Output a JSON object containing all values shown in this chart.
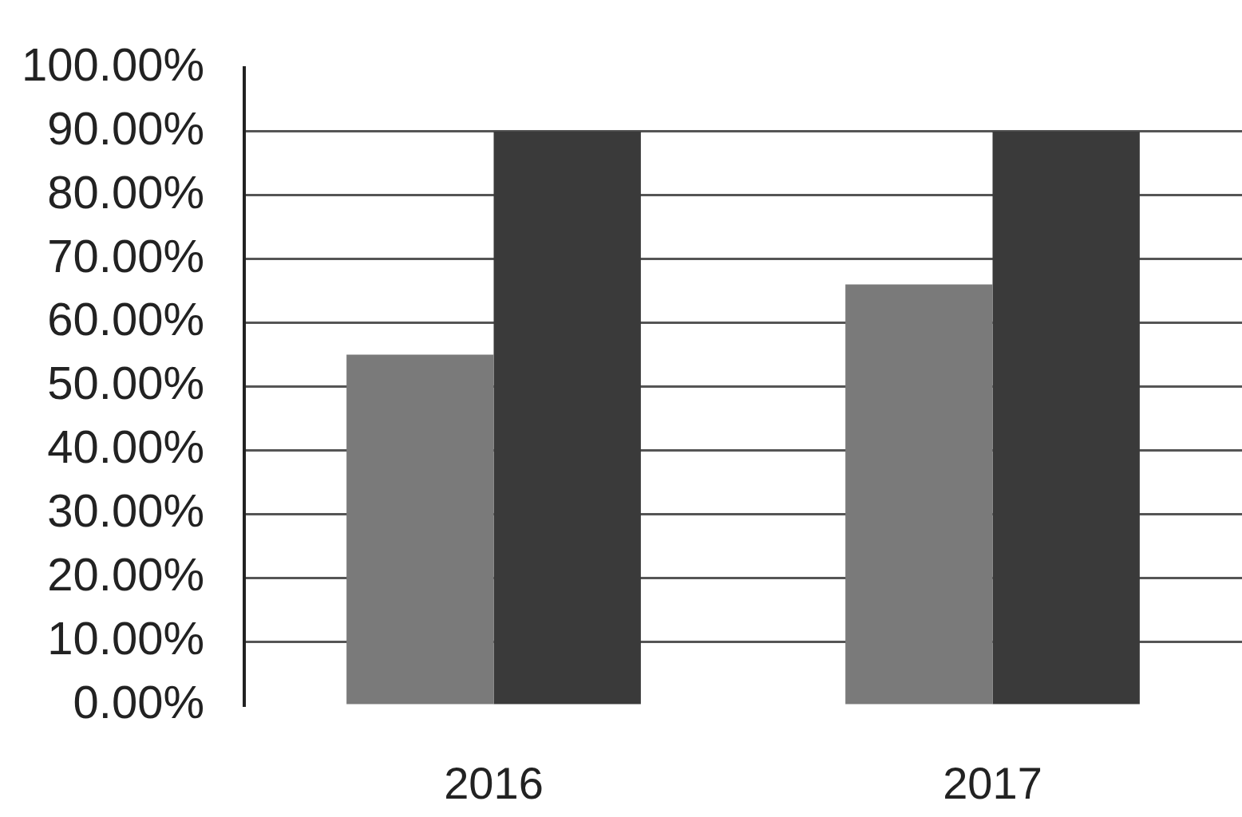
{
  "chart_data": {
    "type": "bar",
    "categories": [
      "2016",
      "2017"
    ],
    "series": [
      {
        "color": "#7a7a7a",
        "values": [
          55,
          66
        ]
      },
      {
        "color": "#3a3a3a",
        "values": [
          90,
          90
        ]
      }
    ],
    "ylim": [
      0,
      100
    ],
    "yticks": [
      {
        "value": 0,
        "label": "0.00%"
      },
      {
        "value": 10,
        "label": "10.00%"
      },
      {
        "value": 20,
        "label": "20.00%"
      },
      {
        "value": 30,
        "label": "30.00%"
      },
      {
        "value": 40,
        "label": "40.00%"
      },
      {
        "value": 50,
        "label": "50.00%"
      },
      {
        "value": 60,
        "label": "60.00%"
      },
      {
        "value": 70,
        "label": "70.00%"
      },
      {
        "value": 80,
        "label": "80.00%"
      },
      {
        "value": 90,
        "label": "90.00%"
      },
      {
        "value": 100,
        "label": "100.00%"
      }
    ],
    "grid": "y"
  }
}
